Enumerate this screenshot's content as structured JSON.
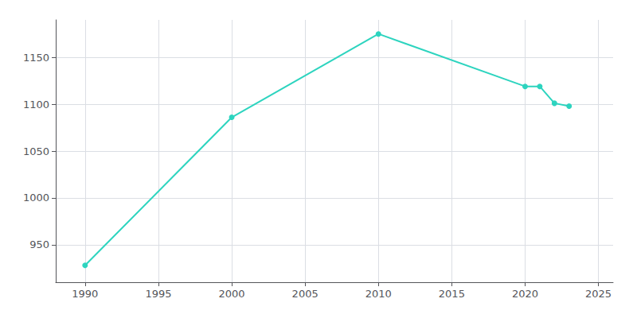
{
  "chart_data": {
    "type": "line",
    "x": [
      1990,
      2000,
      2010,
      2020,
      2021,
      2022,
      2023
    ],
    "values": [
      928,
      1086,
      1175,
      1119,
      1119,
      1101,
      1098
    ],
    "color": "#2dd4bf",
    "marker": "circle",
    "xlim": [
      1988,
      2026
    ],
    "ylim": [
      910,
      1190
    ],
    "xticks": [
      1990,
      1995,
      2000,
      2005,
      2010,
      2015,
      2020,
      2025
    ],
    "yticks": [
      950,
      1000,
      1050,
      1100,
      1150
    ],
    "grid": true
  }
}
